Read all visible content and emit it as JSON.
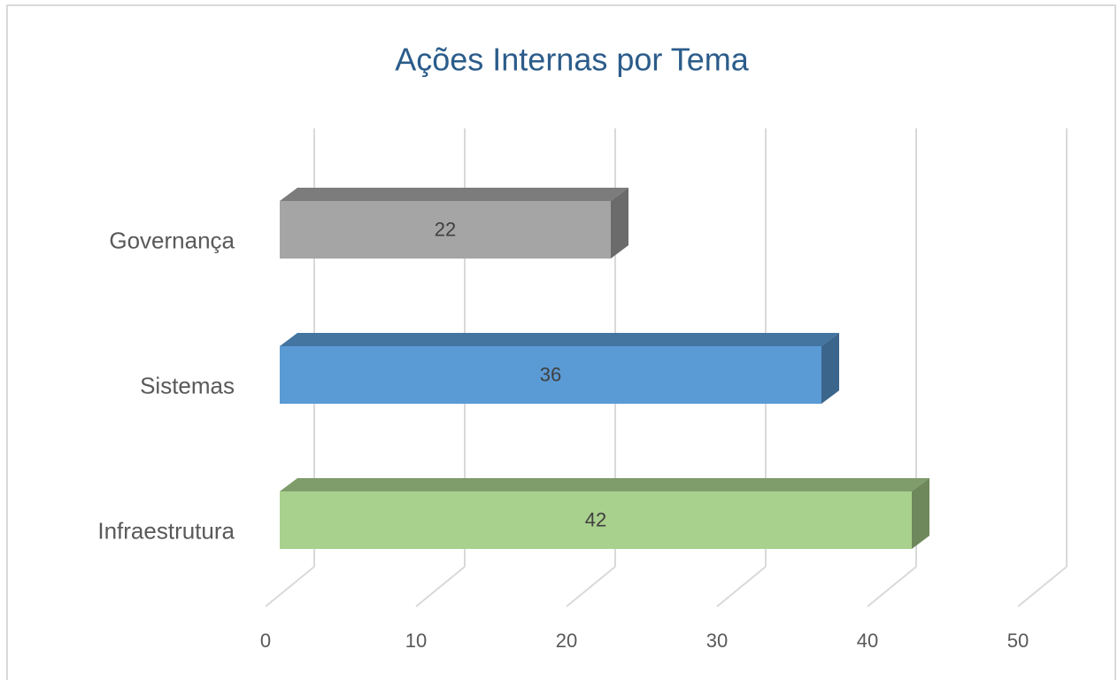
{
  "chart_data": {
    "type": "bar3d_horizontal",
    "title": "Ações Internas por Tema",
    "categories": [
      "Governança",
      "Sistemas",
      "Infraestrutura"
    ],
    "values": [
      22,
      36,
      42
    ],
    "colors": [
      "#a5a5a5",
      "#5b9bd5",
      "#a9d18e"
    ],
    "xlim": [
      0,
      50
    ],
    "xticks": [
      0,
      10,
      20,
      30,
      40,
      50
    ],
    "grid": true
  }
}
